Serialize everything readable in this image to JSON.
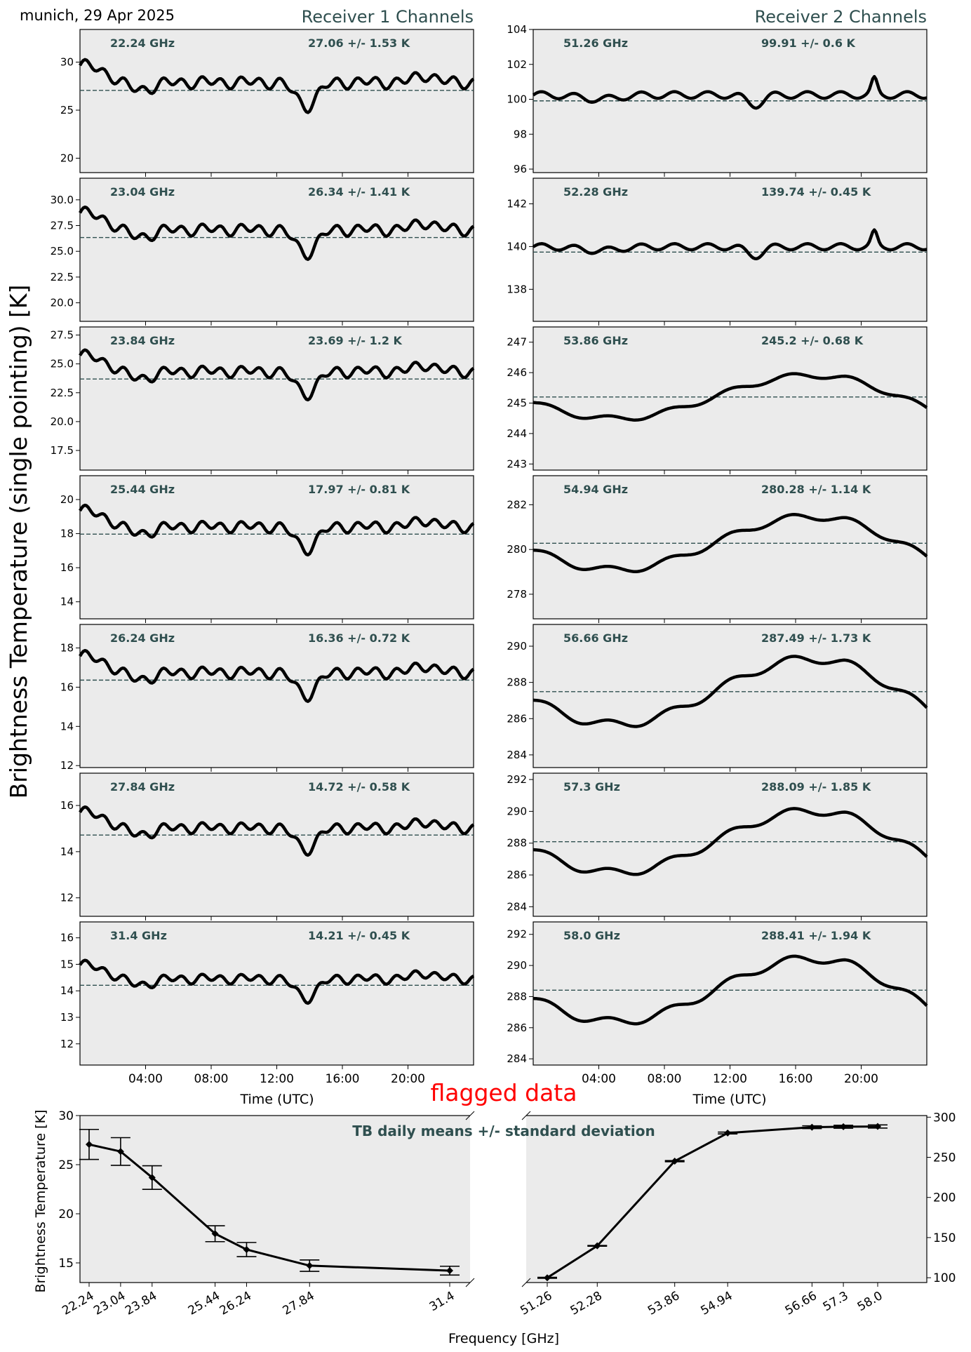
{
  "header": {
    "location_date": "munich, 29 Apr 2025",
    "receiver1_title": "Receiver 1 Channels",
    "receiver2_title": "Receiver 2 Channels",
    "ylabel": "Brightness Temperature (single pointing) [K]",
    "flag_text": "flagged data"
  },
  "chart_data": [
    {
      "type": "line",
      "receiver": 1,
      "xlabel": "Time (UTC)",
      "x_range_hours": [
        0,
        24
      ],
      "xticks": [
        "04:00",
        "08:00",
        "12:00",
        "16:00",
        "20:00"
      ],
      "grid": false,
      "panels": [
        {
          "freq_label": "22.24 GHz",
          "stat_label": "27.06 +/- 1.53 K",
          "mean": 27.06,
          "std": 1.53,
          "ylim": [
            18.5,
            33.4
          ],
          "yticks": [
            20,
            25,
            30
          ],
          "ytick_labels": [
            "20",
            "25",
            "30"
          ]
        },
        {
          "freq_label": "23.04 GHz",
          "stat_label": "26.34 +/- 1.41 K",
          "mean": 26.34,
          "std": 1.41,
          "ylim": [
            18.2,
            32.1
          ],
          "yticks": [
            20,
            22.5,
            25,
            27.5,
            30
          ],
          "ytick_labels": [
            "20.0",
            "22.5",
            "25.0",
            "27.5",
            "30.0"
          ]
        },
        {
          "freq_label": "23.84 GHz",
          "stat_label": "23.69 +/- 1.2 K",
          "mean": 23.69,
          "std": 1.2,
          "ylim": [
            15.8,
            28.2
          ],
          "yticks": [
            17.5,
            20,
            22.5,
            25,
            27.5
          ],
          "ytick_labels": [
            "17.5",
            "20.0",
            "22.5",
            "25.0",
            "27.5"
          ]
        },
        {
          "freq_label": "25.44 GHz",
          "stat_label": "17.97 +/- 0.81 K",
          "mean": 17.97,
          "std": 0.81,
          "ylim": [
            13.0,
            21.4
          ],
          "yticks": [
            14,
            16,
            18,
            20
          ],
          "ytick_labels": [
            "14",
            "16",
            "18",
            "20"
          ]
        },
        {
          "freq_label": "26.24 GHz",
          "stat_label": "16.36 +/- 0.72 K",
          "mean": 16.36,
          "std": 0.72,
          "ylim": [
            11.9,
            19.2
          ],
          "yticks": [
            12,
            14,
            16,
            18
          ],
          "ytick_labels": [
            "12",
            "14",
            "16",
            "18"
          ]
        },
        {
          "freq_label": "27.84 GHz",
          "stat_label": "14.72 +/- 0.58 K",
          "mean": 14.72,
          "std": 0.58,
          "ylim": [
            11.2,
            17.4
          ],
          "yticks": [
            12,
            14,
            16
          ],
          "ytick_labels": [
            "12",
            "14",
            "16"
          ]
        },
        {
          "freq_label": "31.4 GHz",
          "stat_label": "14.21 +/- 0.45 K",
          "mean": 14.21,
          "std": 0.45,
          "ylim": [
            11.2,
            16.6
          ],
          "yticks": [
            12,
            13,
            14,
            15,
            16
          ],
          "ytick_labels": [
            "12",
            "13",
            "14",
            "15",
            "16"
          ]
        }
      ]
    },
    {
      "type": "line",
      "receiver": 2,
      "xlabel": "Time (UTC)",
      "x_range_hours": [
        0,
        24
      ],
      "xticks": [
        "04:00",
        "08:00",
        "12:00",
        "16:00",
        "20:00"
      ],
      "grid": false,
      "panels": [
        {
          "freq_label": "51.26 GHz",
          "stat_label": "99.91 +/- 0.6 K",
          "mean": 99.91,
          "std": 0.6,
          "ylim": [
            95.8,
            104.0
          ],
          "yticks": [
            96,
            98,
            100,
            102,
            104
          ],
          "ytick_labels": [
            "96",
            "98",
            "100",
            "102",
            "104"
          ]
        },
        {
          "freq_label": "52.28 GHz",
          "stat_label": "139.74 +/- 0.45 K",
          "mean": 139.74,
          "std": 0.45,
          "ylim": [
            136.5,
            143.2
          ],
          "yticks": [
            138,
            140,
            142
          ],
          "ytick_labels": [
            "138",
            "140",
            "142"
          ]
        },
        {
          "freq_label": "53.86 GHz",
          "stat_label": "245.2 +/- 0.68 K",
          "mean": 245.2,
          "std": 0.68,
          "ylim": [
            242.8,
            247.5
          ],
          "yticks": [
            243,
            244,
            245,
            246,
            247
          ],
          "ytick_labels": [
            "243",
            "244",
            "245",
            "246",
            "247"
          ]
        },
        {
          "freq_label": "54.94 GHz",
          "stat_label": "280.28 +/- 1.14 K",
          "mean": 280.28,
          "std": 1.14,
          "ylim": [
            276.9,
            283.3
          ],
          "yticks": [
            278,
            280,
            282
          ],
          "ytick_labels": [
            "278",
            "280",
            "282"
          ]
        },
        {
          "freq_label": "56.66 GHz",
          "stat_label": "287.49 +/- 1.73 K",
          "mean": 287.49,
          "std": 1.73,
          "ylim": [
            283.3,
            291.2
          ],
          "yticks": [
            284,
            286,
            288,
            290
          ],
          "ytick_labels": [
            "284",
            "286",
            "288",
            "290"
          ]
        },
        {
          "freq_label": "57.3 GHz",
          "stat_label": "288.09 +/- 1.85 K",
          "mean": 288.09,
          "std": 1.85,
          "ylim": [
            283.4,
            292.4
          ],
          "yticks": [
            284,
            286,
            288,
            290,
            292
          ],
          "ytick_labels": [
            "284",
            "286",
            "288",
            "290",
            "292"
          ]
        },
        {
          "freq_label": "58.0 GHz",
          "stat_label": "288.41 +/- 1.94 K",
          "mean": 288.41,
          "std": 1.94,
          "ylim": [
            283.6,
            292.8
          ],
          "yticks": [
            284,
            286,
            288,
            290,
            292
          ],
          "ytick_labels": [
            "284",
            "286",
            "288",
            "290",
            "292"
          ]
        }
      ]
    },
    {
      "type": "line",
      "title": "TB daily means +/- standard deviation",
      "xlabel": "Frequency [GHz]",
      "ylabel_left": "Brightness Temperature [K]",
      "left_ylim": [
        13.0,
        30.0
      ],
      "left_yticks": [
        15,
        20,
        25,
        30
      ],
      "right_ylim": [
        94,
        302
      ],
      "right_yticks": [
        100,
        150,
        200,
        250,
        300
      ],
      "receiver1": {
        "frequency": [
          22.24,
          23.04,
          23.84,
          25.44,
          26.24,
          27.84,
          31.4
        ],
        "frequency_labels": [
          "22.24",
          "23.04",
          "23.84",
          "25.44",
          "26.24",
          "27.84",
          "31.4"
        ],
        "mean": [
          27.06,
          26.34,
          23.69,
          17.97,
          16.36,
          14.72,
          14.21
        ],
        "std": [
          1.53,
          1.41,
          1.2,
          0.81,
          0.72,
          0.58,
          0.45
        ]
      },
      "receiver2": {
        "frequency": [
          51.26,
          52.28,
          53.86,
          54.94,
          56.66,
          57.3,
          58.0
        ],
        "frequency_labels": [
          "51.26",
          "52.28",
          "53.86",
          "54.94",
          "56.66",
          "57.3",
          "58.0"
        ],
        "mean": [
          99.91,
          139.74,
          245.2,
          280.28,
          287.49,
          288.09,
          288.41
        ],
        "std": [
          0.6,
          0.45,
          0.68,
          1.14,
          1.73,
          1.85,
          1.94
        ]
      }
    }
  ]
}
